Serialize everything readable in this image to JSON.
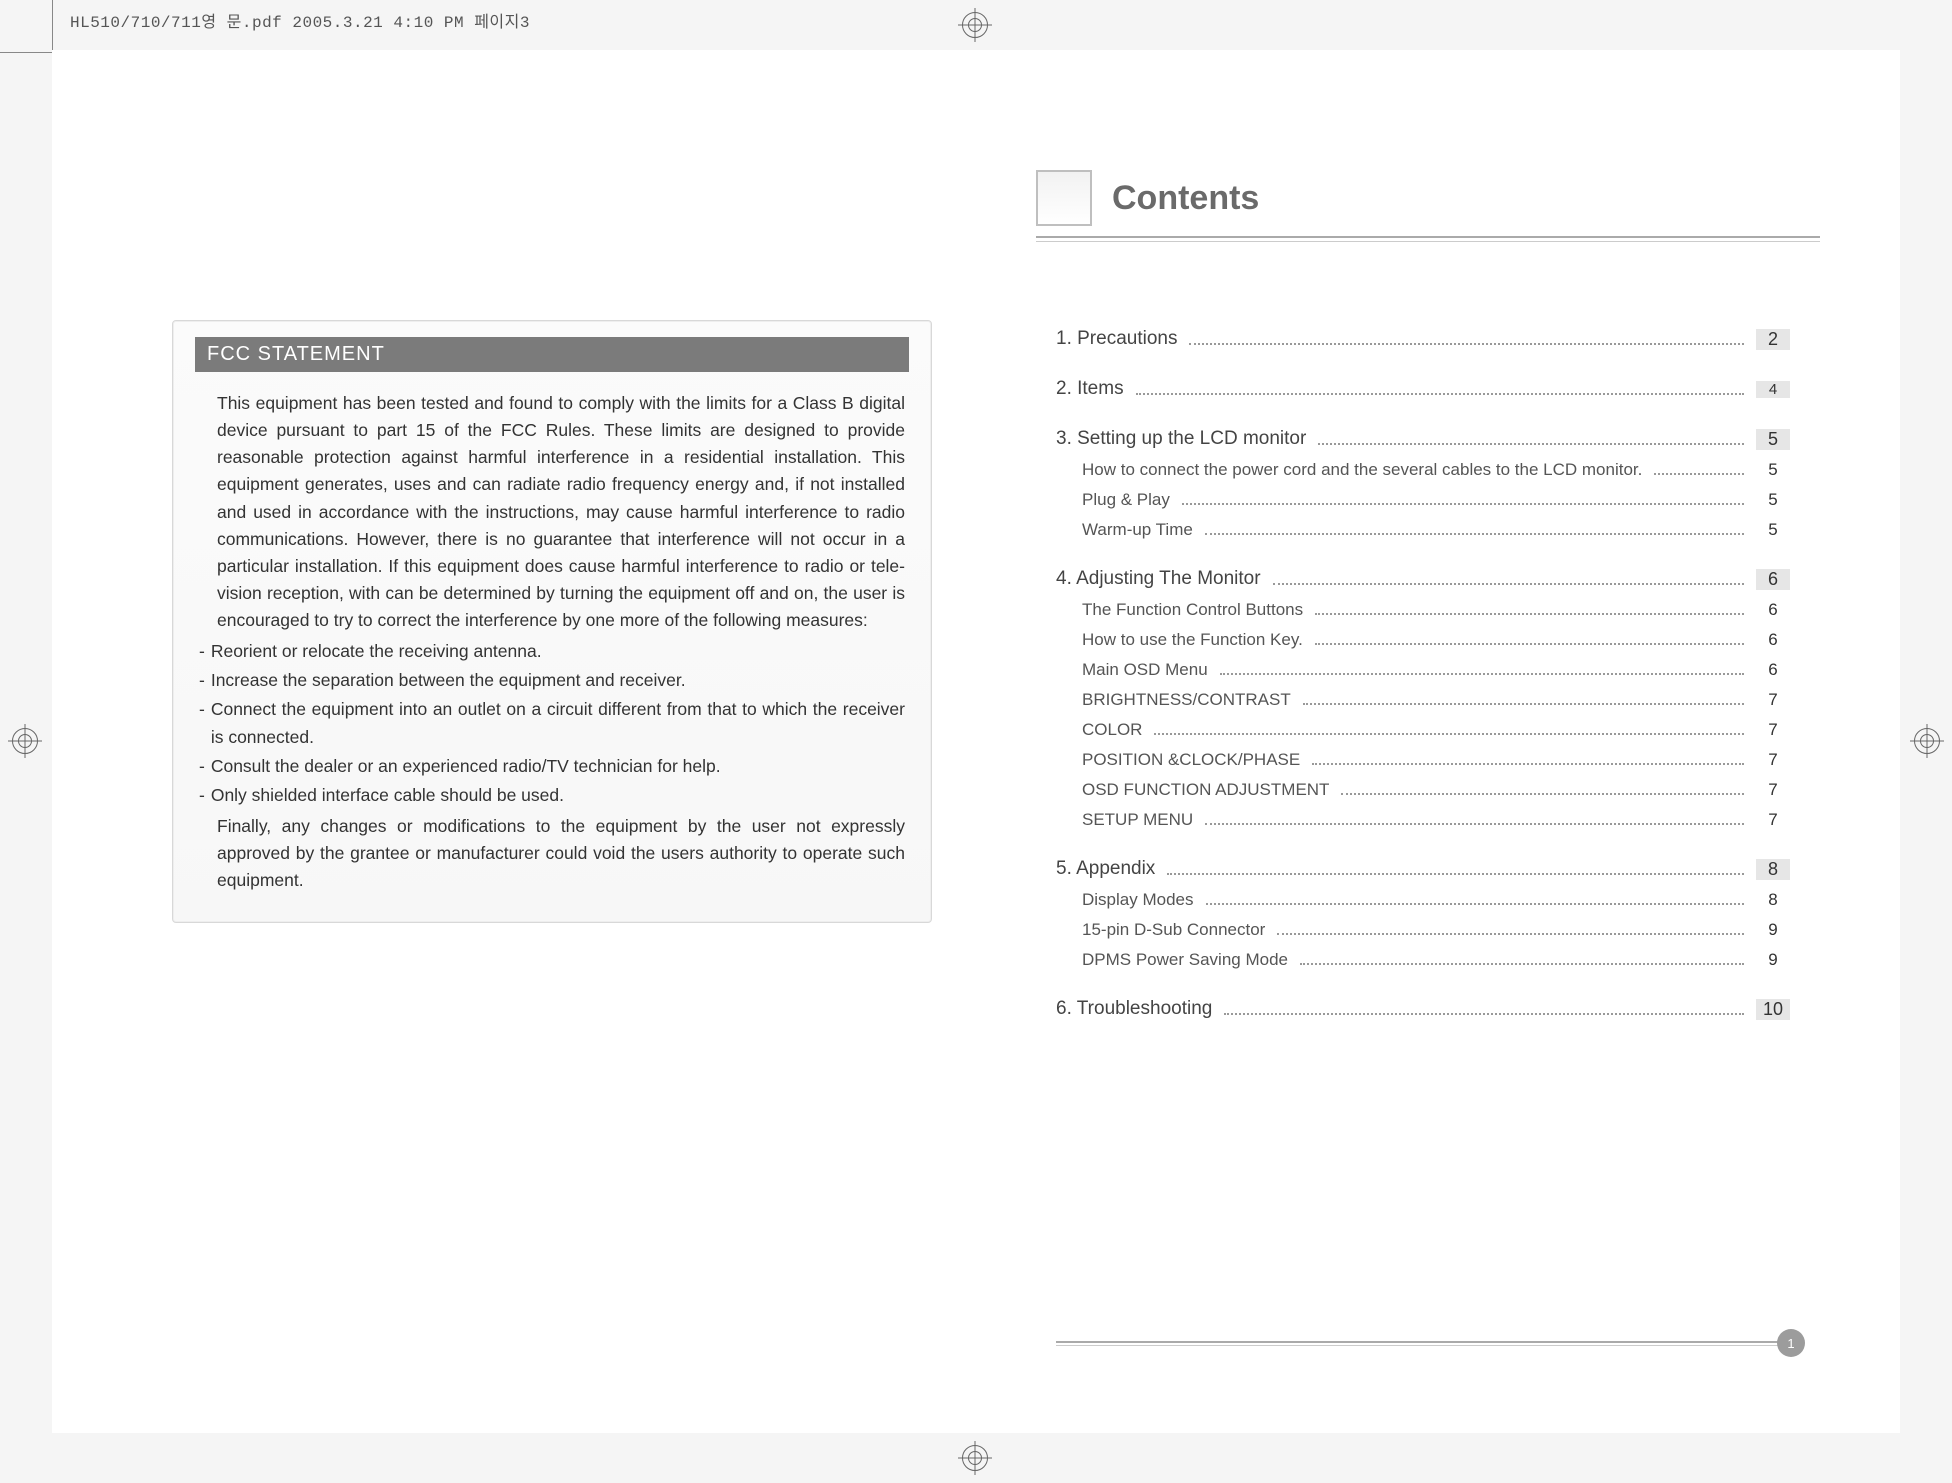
{
  "header_filename": "HL510/710/711영 문.pdf  2005.3.21 4:10 PM  페이지3",
  "fcc": {
    "title": "FCC STATEMENT",
    "intro": "This equipment has been tested and found to comply with the limits for a Class B digital device pursuant to part 15 of the FCC Rules. These limits are designed to provide reasonable protection against harmful interference in a residential installation. This equipment generates, uses and can radiate radio frequency energy and, if not installed and used in accordance with the instructions, may cause harmful interference to radio communications. However, there is no guarantee that interference will not occur in a particular installation. If this equipment does cause harmful interference to radio or tele-vision reception, with can be determined by turning the equipment off and on, the user is encouraged to try to correct the interference by one more of the following measures:",
    "bullets": [
      "Reorient or relocate the receiving antenna.",
      "Increase the separation between the equipment and receiver.",
      "Connect the equipment into an outlet on a circuit different from that to which the receiver is connected.",
      "Consult the dealer or an experienced radio/TV technician for help.",
      "Only shielded interface cable should be used."
    ],
    "closing": "Finally, any changes or modifications to the equipment by the user not expressly approved by the grantee or manufacturer could void the users authority to operate such equipment."
  },
  "contents_title": "Contents",
  "toc": [
    {
      "label": "1. Precautions",
      "page": "2",
      "sub": []
    },
    {
      "label": "2. Items",
      "page": "4",
      "small": true,
      "sub": []
    },
    {
      "label": "3. Setting up the LCD monitor",
      "page": "5",
      "sub": [
        {
          "label": "How to connect the power cord and the several cables to the LCD monitor.",
          "page": "5"
        },
        {
          "label": "Plug & Play",
          "page": "5"
        },
        {
          "label": "Warm-up Time",
          "page": "5"
        }
      ]
    },
    {
      "label": "4. Adjusting The Monitor",
      "page": "6",
      "sub": [
        {
          "label": "The Function Control Buttons",
          "page": "6"
        },
        {
          "label": "How to use the Function Key.",
          "page": "6"
        },
        {
          "label": "Main OSD Menu",
          "page": "6"
        },
        {
          "label": "BRIGHTNESS/CONTRAST",
          "page": "7"
        },
        {
          "label": "COLOR",
          "page": "7"
        },
        {
          "label": "POSITION &CLOCK/PHASE",
          "page": "7"
        },
        {
          "label": "OSD FUNCTION ADJUSTMENT",
          "page": "7"
        },
        {
          "label": "SETUP MENU",
          "page": "7"
        }
      ]
    },
    {
      "label": "5. Appendix",
      "page": "8",
      "sub": [
        {
          "label": "Display Modes",
          "page": "8"
        },
        {
          "label": "15-pin D-Sub Connector",
          "page": "9"
        },
        {
          "label": "DPMS Power Saving Mode",
          "page": "9"
        }
      ]
    },
    {
      "label": "6. Troubleshooting",
      "page": "10",
      "sub": []
    }
  ],
  "page_number": "1",
  "colors": {
    "page_bg": "#ffffff",
    "outer_bg": "#f5f5f5",
    "title_gray": "#6a6a6a",
    "rule_gray": "#aaaaaa",
    "fcc_bar": "#7b7b7b",
    "pg_badge": "#9c9c9c",
    "pg_cell_bg": "#e6e6e6"
  },
  "fonts": {
    "body_pt": 13,
    "toc_pt": 14,
    "heading_pt": 26
  }
}
